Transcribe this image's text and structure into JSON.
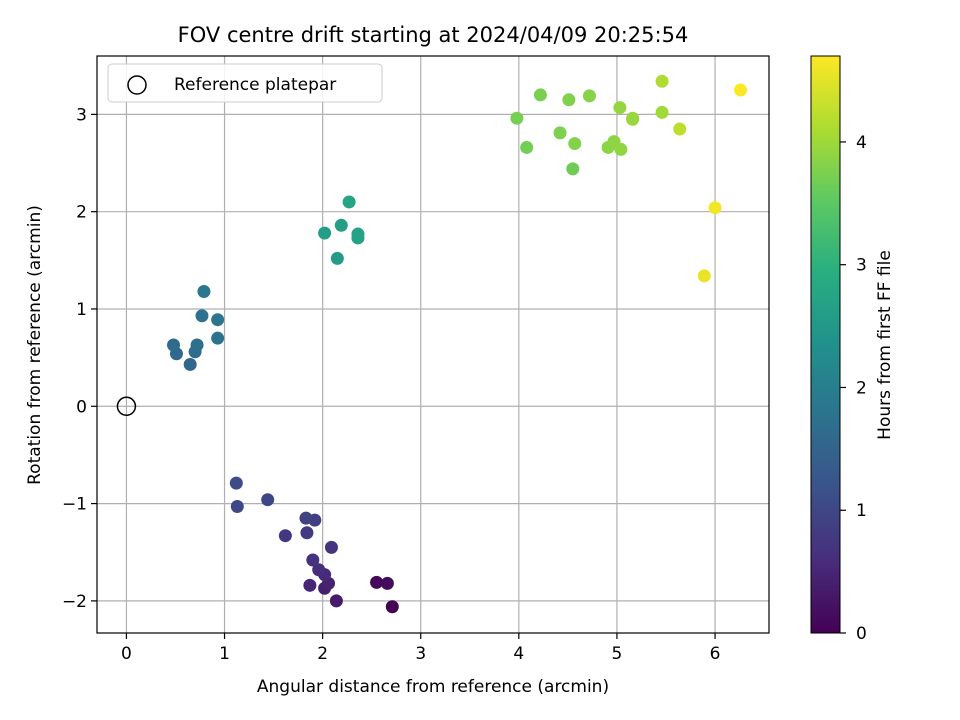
{
  "chart_data": {
    "type": "scatter",
    "title": "FOV centre drift starting at 2024/04/09 20:25:54",
    "xlabel": "Angular distance from reference (arcmin)",
    "ylabel": "Rotation from reference (arcmin)",
    "xlim": [
      -0.3,
      6.55
    ],
    "ylim": [
      -2.33,
      3.6
    ],
    "xticks": [
      0,
      1,
      2,
      3,
      4,
      5,
      6
    ],
    "yticks": [
      -2,
      -1,
      0,
      1,
      2,
      3
    ],
    "xtick_labels": [
      "0",
      "1",
      "2",
      "3",
      "4",
      "5",
      "6"
    ],
    "ytick_labels": [
      "−2",
      "−1",
      "0",
      "1",
      "2",
      "3"
    ],
    "grid": true,
    "legend": {
      "placement": "upper-left",
      "entries": [
        {
          "label": "Reference platepar",
          "marker": "open-circle"
        }
      ]
    },
    "reference_point": {
      "x": 0,
      "y": 0,
      "label": "Reference platepar"
    },
    "colorbar": {
      "label": "Hours from first FF file",
      "colormap": "viridis",
      "range": [
        0,
        4.7
      ],
      "ticks": [
        0,
        1,
        2,
        3,
        4
      ],
      "tick_labels": [
        "0",
        "1",
        "2",
        "3",
        "4"
      ]
    },
    "points": [
      {
        "x": 2.71,
        "y": -2.06,
        "c": 0.05
      },
      {
        "x": 2.55,
        "y": -1.81,
        "c": 0.1
      },
      {
        "x": 2.66,
        "y": -1.82,
        "c": 0.14
      },
      {
        "x": 2.14,
        "y": -2.0,
        "c": 0.35
      },
      {
        "x": 2.02,
        "y": -1.87,
        "c": 0.4
      },
      {
        "x": 2.06,
        "y": -1.82,
        "c": 0.44
      },
      {
        "x": 1.87,
        "y": -1.84,
        "c": 0.5
      },
      {
        "x": 2.02,
        "y": -1.73,
        "c": 0.55
      },
      {
        "x": 1.96,
        "y": -1.68,
        "c": 0.6
      },
      {
        "x": 1.9,
        "y": -1.58,
        "c": 0.66
      },
      {
        "x": 2.09,
        "y": -1.45,
        "c": 0.7
      },
      {
        "x": 1.62,
        "y": -1.33,
        "c": 0.76
      },
      {
        "x": 1.84,
        "y": -1.3,
        "c": 0.8
      },
      {
        "x": 1.92,
        "y": -1.17,
        "c": 0.86
      },
      {
        "x": 1.83,
        "y": -1.15,
        "c": 0.9
      },
      {
        "x": 1.44,
        "y": -0.96,
        "c": 0.98
      },
      {
        "x": 1.13,
        "y": -1.03,
        "c": 1.02
      },
      {
        "x": 1.12,
        "y": -0.79,
        "c": 1.06
      },
      {
        "x": 0.65,
        "y": 0.43,
        "c": 1.55
      },
      {
        "x": 0.51,
        "y": 0.54,
        "c": 1.58
      },
      {
        "x": 0.48,
        "y": 0.63,
        "c": 1.62
      },
      {
        "x": 0.7,
        "y": 0.56,
        "c": 1.66
      },
      {
        "x": 0.72,
        "y": 0.63,
        "c": 1.7
      },
      {
        "x": 0.77,
        "y": 0.93,
        "c": 1.75
      },
      {
        "x": 0.93,
        "y": 0.7,
        "c": 1.78
      },
      {
        "x": 0.93,
        "y": 0.89,
        "c": 1.82
      },
      {
        "x": 0.79,
        "y": 1.18,
        "c": 1.86
      },
      {
        "x": 2.15,
        "y": 1.52,
        "c": 2.55
      },
      {
        "x": 2.02,
        "y": 1.78,
        "c": 2.6
      },
      {
        "x": 2.19,
        "y": 1.86,
        "c": 2.64
      },
      {
        "x": 2.36,
        "y": 1.73,
        "c": 2.68
      },
      {
        "x": 2.36,
        "y": 1.77,
        "c": 2.72
      },
      {
        "x": 2.27,
        "y": 2.1,
        "c": 2.76
      },
      {
        "x": 4.55,
        "y": 2.44,
        "c": 3.65
      },
      {
        "x": 4.08,
        "y": 2.66,
        "c": 3.68
      },
      {
        "x": 3.98,
        "y": 2.96,
        "c": 3.7
      },
      {
        "x": 4.22,
        "y": 3.2,
        "c": 3.72
      },
      {
        "x": 4.42,
        "y": 2.81,
        "c": 3.76
      },
      {
        "x": 4.51,
        "y": 3.15,
        "c": 3.78
      },
      {
        "x": 4.57,
        "y": 2.7,
        "c": 3.8
      },
      {
        "x": 4.72,
        "y": 3.19,
        "c": 3.82
      },
      {
        "x": 4.91,
        "y": 2.66,
        "c": 3.86
      },
      {
        "x": 4.97,
        "y": 2.72,
        "c": 3.88
      },
      {
        "x": 5.04,
        "y": 2.64,
        "c": 3.9
      },
      {
        "x": 5.03,
        "y": 3.07,
        "c": 3.92
      },
      {
        "x": 5.16,
        "y": 2.95,
        "c": 3.94
      },
      {
        "x": 5.16,
        "y": 2.96,
        "c": 3.96
      },
      {
        "x": 5.46,
        "y": 3.02,
        "c": 4.02
      },
      {
        "x": 5.46,
        "y": 3.34,
        "c": 4.12
      },
      {
        "x": 5.64,
        "y": 2.85,
        "c": 4.22
      },
      {
        "x": 5.89,
        "y": 1.34,
        "c": 4.55
      },
      {
        "x": 6.0,
        "y": 2.04,
        "c": 4.62
      },
      {
        "x": 6.26,
        "y": 3.25,
        "c": 4.68
      }
    ]
  }
}
